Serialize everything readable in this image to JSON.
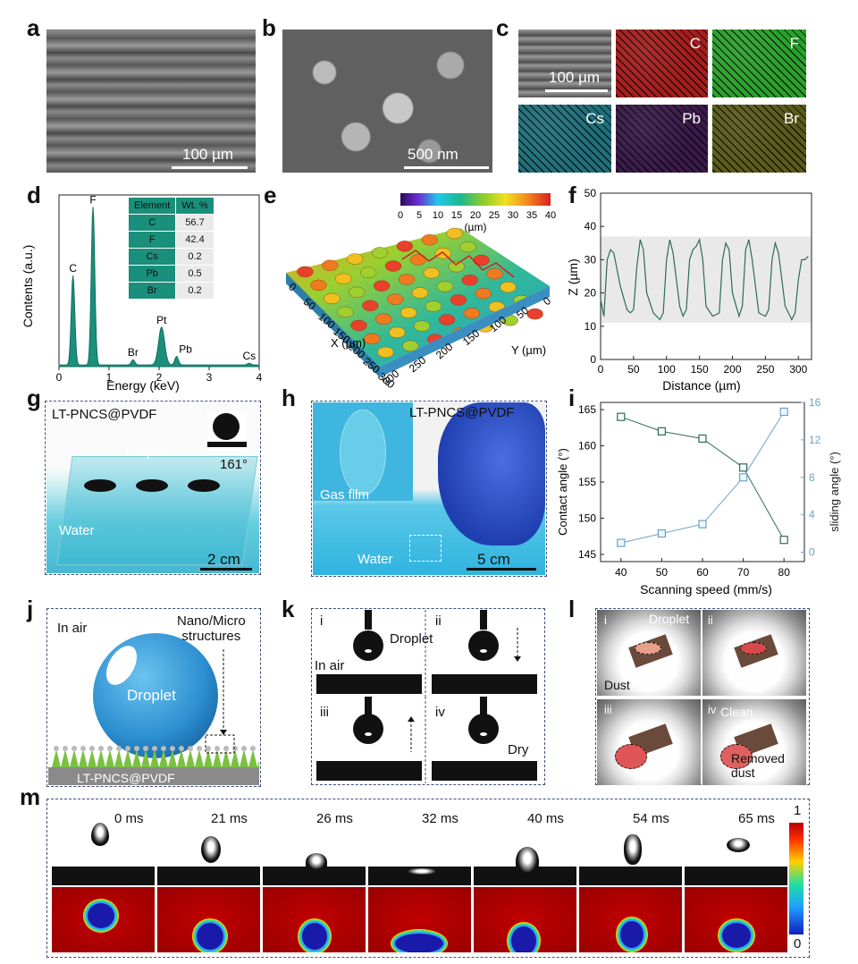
{
  "panels": {
    "a": {
      "label": "a",
      "scale": "100 µm"
    },
    "b": {
      "label": "b",
      "scale": "500 nm"
    },
    "c": {
      "label": "c",
      "scale": "100 µm",
      "maps": [
        {
          "el": "C",
          "color": "#a51d1d"
        },
        {
          "el": "F",
          "color": "#2aa02a"
        },
        {
          "el": "Cs",
          "color": "#1f6f7a"
        },
        {
          "el": "Pb",
          "color": "#3a1a4a"
        },
        {
          "el": "Br",
          "color": "#5a5a1a"
        }
      ]
    },
    "d": {
      "label": "d",
      "table": {
        "headers": [
          "Element",
          "Wt. %"
        ],
        "rows": [
          [
            "C",
            "56.7"
          ],
          [
            "F",
            "42.4"
          ],
          [
            "Cs",
            "0.2"
          ],
          [
            "Pb",
            "0.5"
          ],
          [
            "Br",
            "0.2"
          ]
        ]
      },
      "peaks": [
        "C",
        "F",
        "Pt",
        "Br",
        "Pb",
        "Cs"
      ]
    },
    "e": {
      "label": "e",
      "colorbar_ticks": [
        "0",
        "5",
        "10",
        "15",
        "20",
        "25",
        "30",
        "35",
        "40"
      ],
      "unit": "(µm)",
      "xaxis": "X (µm)",
      "yaxis": "Y (µm)",
      "x_ticks": [
        "0",
        "50",
        "100",
        "150",
        "200",
        "250",
        "300"
      ],
      "y_ticks": [
        "300",
        "250",
        "200",
        "150",
        "100",
        "50",
        "0"
      ]
    },
    "f": {
      "label": "f"
    },
    "g": {
      "label": "g",
      "material": "LT-PNCS@PVDF",
      "droplet": "Droplet",
      "angle": "161°",
      "water": "Water",
      "scale": "2 cm"
    },
    "h": {
      "label": "h",
      "material": "LT-PNCS@PVDF",
      "gas_film": "Gas film",
      "water": "Water",
      "scale": "5 cm"
    },
    "i": {
      "label": "i"
    },
    "j": {
      "label": "j",
      "in_air": "In air",
      "structures": "Nano/Micro\nstructures",
      "droplet": "Droplet",
      "material": "LT-PNCS@PVDF"
    },
    "k": {
      "label": "k",
      "steps": [
        "i",
        "ii",
        "iii",
        "iv"
      ],
      "droplet": "Droplet",
      "in_air": "In air",
      "dry": "Dry"
    },
    "l": {
      "label": "l",
      "steps": [
        "i",
        "ii",
        "iii",
        "iv"
      ],
      "droplet": "Droplet",
      "dust": "Dust",
      "clean": "Clean",
      "removed": "Removed\ndust"
    },
    "m": {
      "label": "m",
      "times": [
        "0 ms",
        "21 ms",
        "26 ms",
        "32 ms",
        "40 ms",
        "54 ms",
        "65 ms"
      ],
      "colorbar_top": "1",
      "colorbar_bottom": "0"
    }
  },
  "chart_data": [
    {
      "id": "d",
      "type": "line",
      "xlabel": "Energy (keV)",
      "ylabel": "Contents (a.u.)",
      "xlim": [
        0,
        4
      ],
      "x_ticks": [
        0,
        1,
        2,
        3,
        4
      ],
      "peaks": [
        {
          "label": "C",
          "x": 0.28,
          "y": 0.52
        },
        {
          "label": "F",
          "x": 0.68,
          "y": 0.92
        },
        {
          "label": "Br",
          "x": 1.48,
          "y": 0.03
        },
        {
          "label": "Pt",
          "x": 2.05,
          "y": 0.22
        },
        {
          "label": "Pb",
          "x": 2.35,
          "y": 0.05
        },
        {
          "label": "Cs",
          "x": 3.8,
          "y": 0.01
        }
      ]
    },
    {
      "id": "f",
      "type": "line",
      "xlabel": "Distance (µm)",
      "ylabel": "Z (µm)",
      "xlim": [
        0,
        320
      ],
      "ylim": [
        0,
        50
      ],
      "x_ticks": [
        0,
        50,
        100,
        150,
        200,
        250,
        300
      ],
      "y_ticks": [
        0,
        10,
        20,
        30,
        40,
        50
      ],
      "band": [
        11,
        37
      ],
      "x": [
        0,
        5,
        10,
        15,
        20,
        30,
        40,
        45,
        50,
        55,
        60,
        65,
        70,
        80,
        90,
        95,
        100,
        105,
        110,
        120,
        125,
        130,
        135,
        140,
        145,
        150,
        155,
        160,
        170,
        180,
        185,
        190,
        195,
        200,
        210,
        215,
        220,
        225,
        230,
        240,
        250,
        255,
        260,
        265,
        270,
        280,
        290,
        295,
        300,
        305,
        310,
        315
      ],
      "y": [
        18,
        13,
        30,
        33,
        32,
        22,
        15,
        14,
        15,
        28,
        36,
        33,
        20,
        14,
        12,
        14,
        30,
        36,
        32,
        16,
        13,
        15,
        30,
        33,
        34,
        36,
        30,
        16,
        13,
        14,
        30,
        35,
        33,
        20,
        13,
        16,
        33,
        36,
        30,
        14,
        13,
        15,
        30,
        35,
        32,
        16,
        12,
        14,
        24,
        30,
        30,
        31
      ]
    },
    {
      "id": "i",
      "type": "line",
      "xlabel": "Scanning speed (mm/s)",
      "x": [
        40,
        50,
        60,
        70,
        80
      ],
      "x_ticks": [
        40,
        50,
        60,
        70,
        80
      ],
      "series": [
        {
          "name": "Contact angle (°)",
          "axis": "left",
          "values": [
            164,
            162,
            161,
            157,
            147
          ],
          "color": "#2e6b55"
        },
        {
          "name": "sliding angle (°)",
          "axis": "right",
          "values": [
            1,
            2,
            3,
            8,
            15
          ],
          "color": "#6ea2c8"
        }
      ],
      "ylim_left": [
        144,
        166
      ],
      "y_ticks_left": [
        145,
        150,
        155,
        160,
        165
      ],
      "ylim_right": [
        -1,
        16
      ],
      "y_ticks_right": [
        0,
        4,
        8,
        12,
        16
      ]
    }
  ]
}
